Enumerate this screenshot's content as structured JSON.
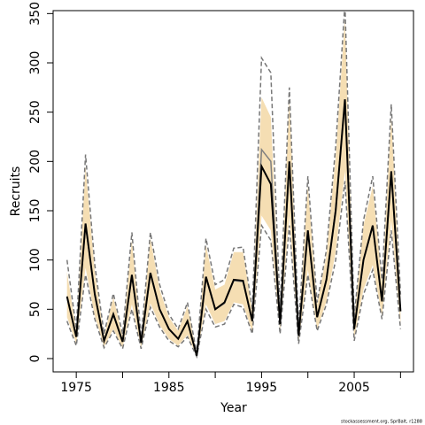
{
  "chart_data": {
    "type": "line",
    "x_label": "Year",
    "y_label": "Recruits",
    "footer": "stockassessment.org, SprBalt, r1288",
    "x": [
      1974,
      1975,
      1976,
      1977,
      1978,
      1979,
      1980,
      1981,
      1982,
      1983,
      1984,
      1985,
      1986,
      1987,
      1988,
      1989,
      1990,
      1991,
      1992,
      1993,
      1994,
      1995,
      1996,
      1997,
      1998,
      1999,
      2000,
      2001,
      2002,
      2003,
      2004,
      2005,
      2006,
      2007,
      2008,
      2009,
      2010
    ],
    "xlim": [
      1972.5,
      2011.4
    ],
    "xticks": [
      1975,
      1985,
      1995,
      2005
    ],
    "minor_xticks": [
      1980,
      1990,
      2000,
      2010
    ],
    "ylim": [
      -13.5,
      353
    ],
    "yticks": [
      0,
      50,
      100,
      150,
      200,
      250,
      300,
      350
    ],
    "band": {
      "color": "#f5deb3",
      "lower": [
        42,
        15,
        92,
        43,
        12,
        30,
        11,
        55,
        11,
        56,
        34,
        20,
        13,
        24,
        2,
        55,
        35,
        38,
        57,
        55,
        27,
        145,
        130,
        27,
        145,
        16,
        90,
        30,
        58,
        108,
        190,
        20,
        70,
        95,
        43,
        140,
        33
      ],
      "upper": [
        88,
        28,
        195,
        88,
        23,
        62,
        23,
        120,
        21,
        122,
        70,
        42,
        28,
        53,
        5,
        115,
        70,
        75,
        108,
        108,
        48,
        265,
        245,
        47,
        265,
        30,
        175,
        55,
        105,
        205,
        345,
        40,
        135,
        175,
        77,
        245,
        62
      ]
    },
    "series": [
      {
        "color": "#777777",
        "dashed": true,
        "values": [
          100,
          30,
          207,
          95,
          25,
          66,
          25,
          128,
          22,
          128,
          75,
          45,
          30,
          57,
          5,
          122,
          75,
          80,
          112,
          113,
          50,
          305,
          290,
          50,
          275,
          32,
          185,
          57,
          110,
          215,
          360,
          42,
          140,
          185,
          80,
          258,
          65
        ]
      },
      {
        "color": "#777777",
        "dashed": true,
        "values": [
          38,
          13,
          85,
          40,
          11,
          28,
          10,
          50,
          10,
          52,
          32,
          18,
          12,
          22,
          2,
          50,
          32,
          35,
          55,
          52,
          25,
          135,
          120,
          25,
          135,
          15,
          85,
          28,
          55,
          100,
          180,
          18,
          65,
          90,
          40,
          130,
          30
        ]
      },
      {
        "color": "#808080",
        "dashed": false,
        "values": [
          62,
          23,
          135,
          66,
          18,
          45,
          17,
          84,
          16,
          86,
          50,
          30,
          20,
          38,
          3,
          82,
          50,
          56,
          79,
          78,
          38,
          212,
          200,
          36,
          198,
          23,
          130,
          42,
          80,
          152,
          262,
          30,
          100,
          135,
          58,
          188,
          48
        ]
      },
      {
        "color": "#000000",
        "dashed": false,
        "values": [
          63,
          22,
          137,
          65,
          18,
          45,
          17,
          85,
          16,
          87,
          50,
          30,
          20,
          38,
          3,
          83,
          50,
          57,
          80,
          79,
          38,
          195,
          177,
          35,
          200,
          23,
          130,
          42,
          80,
          150,
          263,
          30,
          100,
          135,
          58,
          190,
          48
        ]
      }
    ]
  }
}
